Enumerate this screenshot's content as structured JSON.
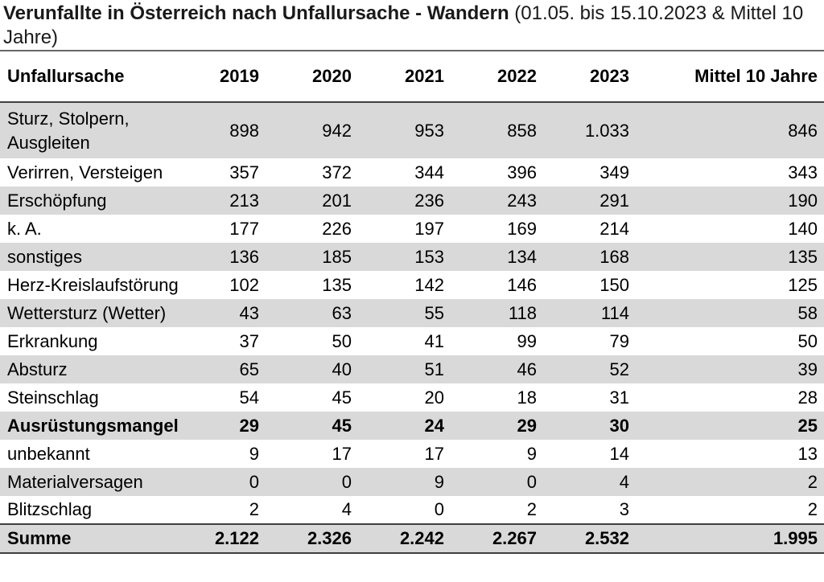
{
  "title": {
    "main": "Verunfallte in Österreich nach Unfallursache - Wandern",
    "suffix": " (01.05. bis 15.10.2023 & Mittel 10 Jahre)"
  },
  "colors": {
    "row_shade": "#d9d9d9",
    "border_dark": "#3f3f3f",
    "border_mid": "#666666"
  },
  "chart_data": {
    "type": "table",
    "title": "Verunfallte in Österreich nach Unfallursache - Wandern (01.05. bis 15.10.2023 & Mittel 10 Jahre)",
    "columns": [
      "Unfallursache",
      "2019",
      "2020",
      "2021",
      "2022",
      "2023",
      "Mittel 10 Jahre"
    ],
    "rows": [
      {
        "label": "Sturz, Stolpern, Ausgleiten",
        "values": [
          "898",
          "942",
          "953",
          "858",
          "1.033",
          "846"
        ],
        "shaded": true,
        "bold": false
      },
      {
        "label": "Verirren, Versteigen",
        "values": [
          "357",
          "372",
          "344",
          "396",
          "349",
          "343"
        ],
        "shaded": false,
        "bold": false
      },
      {
        "label": "Erschöpfung",
        "values": [
          "213",
          "201",
          "236",
          "243",
          "291",
          "190"
        ],
        "shaded": true,
        "bold": false
      },
      {
        "label": "k. A.",
        "values": [
          "177",
          "226",
          "197",
          "169",
          "214",
          "140"
        ],
        "shaded": false,
        "bold": false
      },
      {
        "label": "sonstiges",
        "values": [
          "136",
          "185",
          "153",
          "134",
          "168",
          "135"
        ],
        "shaded": true,
        "bold": false
      },
      {
        "label": "Herz-Kreislaufstörung",
        "values": [
          "102",
          "135",
          "142",
          "146",
          "150",
          "125"
        ],
        "shaded": false,
        "bold": false
      },
      {
        "label": "Wettersturz (Wetter)",
        "values": [
          "43",
          "63",
          "55",
          "118",
          "114",
          "58"
        ],
        "shaded": true,
        "bold": false
      },
      {
        "label": "Erkrankung",
        "values": [
          "37",
          "50",
          "41",
          "99",
          "79",
          "50"
        ],
        "shaded": false,
        "bold": false
      },
      {
        "label": "Absturz",
        "values": [
          "65",
          "40",
          "51",
          "46",
          "52",
          "39"
        ],
        "shaded": true,
        "bold": false
      },
      {
        "label": "Steinschlag",
        "values": [
          "54",
          "45",
          "20",
          "18",
          "31",
          "28"
        ],
        "shaded": false,
        "bold": false
      },
      {
        "label": "Ausrüstungsmangel",
        "values": [
          "29",
          "45",
          "24",
          "29",
          "30",
          "25"
        ],
        "shaded": true,
        "bold": true
      },
      {
        "label": "unbekannt",
        "values": [
          "9",
          "17",
          "17",
          "9",
          "14",
          "13"
        ],
        "shaded": false,
        "bold": false
      },
      {
        "label": "Materialversagen",
        "values": [
          "0",
          "0",
          "9",
          "0",
          "4",
          "2"
        ],
        "shaded": true,
        "bold": false
      },
      {
        "label": "Blitzschlag",
        "values": [
          "2",
          "4",
          "0",
          "2",
          "3",
          "2"
        ],
        "shaded": false,
        "bold": false
      }
    ],
    "footer": {
      "label": "Summe",
      "values": [
        "2.122",
        "2.326",
        "2.242",
        "2.267",
        "2.532",
        "1.995"
      ],
      "shaded": true,
      "bold": true
    }
  }
}
